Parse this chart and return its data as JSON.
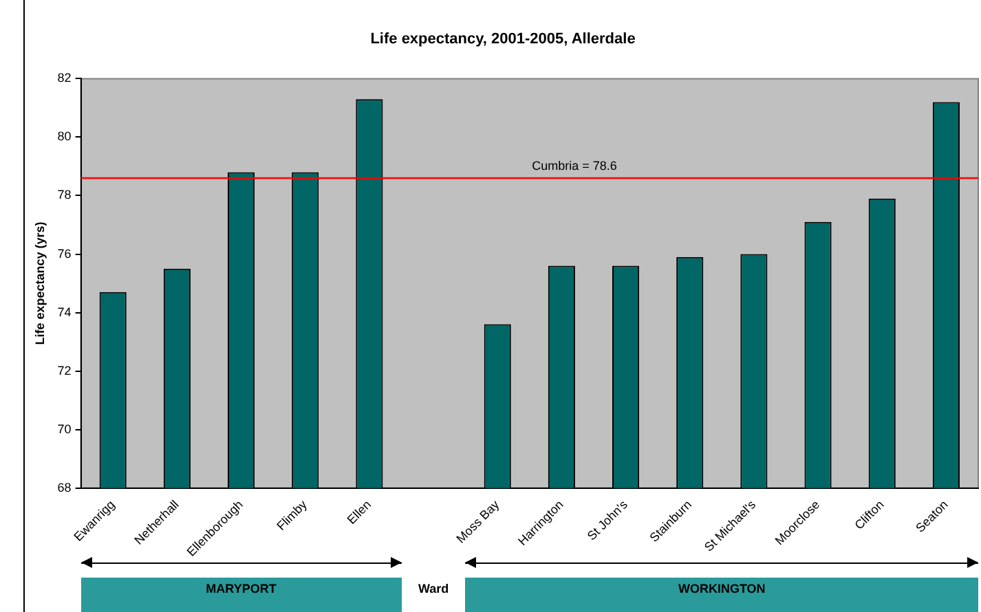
{
  "chart_data": {
    "type": "bar",
    "title": "Life expectancy, 2001-2005, Allerdale",
    "ylabel": "Life expectancy (yrs)",
    "categories": [
      "Ewanrigg",
      "Netherhall",
      "Ellenborough",
      "Flimby",
      "Ellen",
      null,
      "Moss Bay",
      "Harrington",
      "St John's",
      "Stainburn",
      "St Michael's",
      "Moorclose",
      "Clifton",
      "Seaton"
    ],
    "values": [
      74.7,
      75.5,
      78.8,
      78.8,
      81.3,
      null,
      73.6,
      75.6,
      75.6,
      75.9,
      76.0,
      77.1,
      77.9,
      81.2
    ],
    "color": "#006666",
    "ylim": [
      68,
      82
    ],
    "yticks": [
      68,
      70,
      72,
      74,
      76,
      78,
      80,
      82
    ],
    "grid": false,
    "legend": false,
    "ref_lines": [
      {
        "axis": "y",
        "value": 78.6,
        "label": "Cumbria = 78.6",
        "color": "#ff0000"
      }
    ],
    "annotations": [
      "MARYPORT",
      "Ward",
      "WORKINGTON"
    ]
  }
}
